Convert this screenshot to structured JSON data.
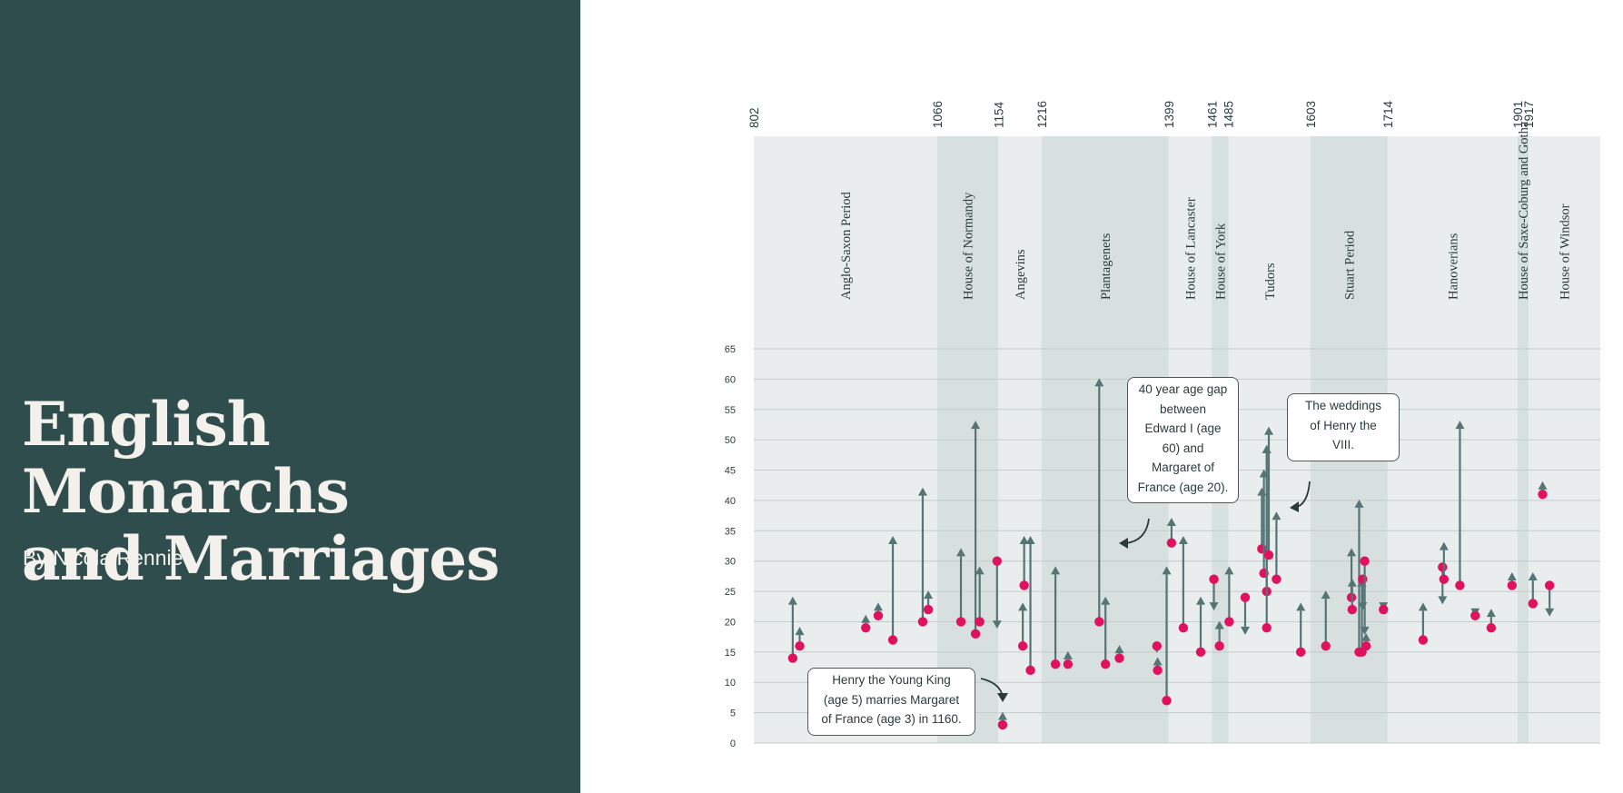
{
  "title_lines": [
    "English Monarchs",
    "and Marriages"
  ],
  "byline": "By Nicola Rennie",
  "colors": {
    "sidebar": "#2f4d4d",
    "title_text": "#f4f1ec",
    "band_light": "#e9eded",
    "band_dark": "#d7dfdf",
    "gridline": "#c4cccc",
    "king": "#557575",
    "consort": "#e0115f"
  },
  "annotations": [
    {
      "name": "henry-young-king-annotation",
      "lines": [
        "Henry the Young King",
        "(age 5) marries Margaret",
        "of France (age 3) in 1160."
      ]
    },
    {
      "name": "edward-age-gap-annotation",
      "lines": [
        "40 year age gap",
        "between",
        "Edward I (age",
        "60) and",
        "Margaret of",
        "France (age 20)."
      ]
    },
    {
      "name": "henry-viii-annotation",
      "lines": [
        "The weddings",
        "of Henry the",
        "VIII."
      ]
    }
  ],
  "chart_data": {
    "type": "scatter",
    "title": "English Monarchs and Marriages",
    "xlabel": "",
    "ylabel": "",
    "ylim": [
      0,
      65
    ],
    "yticks": [
      0,
      5,
      10,
      15,
      20,
      25,
      30,
      35,
      40,
      45,
      50,
      55,
      60,
      65
    ],
    "grid": true,
    "period_boundaries": [
      802,
      1066,
      1154,
      1216,
      1399,
      1461,
      1485,
      1603,
      1714,
      1901,
      1917
    ],
    "periods": [
      {
        "name": "Anglo-Saxon Period",
        "start": 802,
        "end": 1066,
        "shade": "light"
      },
      {
        "name": "House of Normandy",
        "start": 1066,
        "end": 1154,
        "shade": "dark"
      },
      {
        "name": "Angevins",
        "start": 1154,
        "end": 1216,
        "shade": "light"
      },
      {
        "name": "Plantagenets",
        "start": 1216,
        "end": 1399,
        "shade": "dark"
      },
      {
        "name": "House of Lancaster",
        "start": 1399,
        "end": 1461,
        "shade": "light"
      },
      {
        "name": "House of York",
        "start": 1461,
        "end": 1485,
        "shade": "dark"
      },
      {
        "name": "Tudors",
        "start": 1485,
        "end": 1603,
        "shade": "light"
      },
      {
        "name": "Stuart Period",
        "start": 1603,
        "end": 1714,
        "shade": "dark"
      },
      {
        "name": "Hanoverians",
        "start": 1714,
        "end": 1901,
        "shade": "light"
      },
      {
        "name": "House of Saxe-Coburg and Gotha",
        "start": 1901,
        "end": 1917,
        "shade": "dark"
      },
      {
        "name": "House of Windsor",
        "start": 1917,
        "end": 2020,
        "shade": "light"
      }
    ],
    "xlim": [
      802,
      2020
    ],
    "marriages": [
      {
        "year": 858,
        "king_age": 24,
        "consort_age": 14
      },
      {
        "year": 868,
        "king_age": 19,
        "consort_age": 16
      },
      {
        "year": 963,
        "king_age": 21,
        "consort_age": 19
      },
      {
        "year": 981,
        "king_age": 23,
        "consort_age": 21
      },
      {
        "year": 1002,
        "king_age": 34,
        "consort_age": 17
      },
      {
        "year": 1045,
        "king_age": 42,
        "consort_age": 20
      },
      {
        "year": 1053,
        "king_age": 25,
        "consort_age": 22
      },
      {
        "year": 1100,
        "king_age": 32,
        "consort_age": 20
      },
      {
        "year": 1121,
        "king_age": 53,
        "consort_age": 18
      },
      {
        "year": 1127,
        "king_age": 29,
        "consort_age": 20
      },
      {
        "year": 1152,
        "king_age": 19,
        "consort_age": 30
      },
      {
        "year": 1160,
        "king_age": 5,
        "consort_age": 3
      },
      {
        "year": 1191,
        "king_age": 34,
        "consort_age": 26
      },
      {
        "year": 1189,
        "king_age": 23,
        "consort_age": 16
      },
      {
        "year": 1200,
        "king_age": 34,
        "consort_age": 12
      },
      {
        "year": 1236,
        "king_age": 29,
        "consort_age": 13
      },
      {
        "year": 1254,
        "king_age": 15,
        "consort_age": 13
      },
      {
        "year": 1299,
        "king_age": 60,
        "consort_age": 20
      },
      {
        "year": 1308,
        "king_age": 24,
        "consort_age": 13
      },
      {
        "year": 1328,
        "king_age": 16,
        "consort_age": 14
      },
      {
        "year": 1382,
        "king_age": 15,
        "consort_age": 16
      },
      {
        "year": 1383,
        "king_age": 14,
        "consort_age": 12
      },
      {
        "year": 1396,
        "king_age": 29,
        "consort_age": 7
      },
      {
        "year": 1403,
        "king_age": 37,
        "consort_age": 33
      },
      {
        "year": 1420,
        "king_age": 34,
        "consort_age": 19
      },
      {
        "year": 1445,
        "king_age": 24,
        "consort_age": 15
      },
      {
        "year": 1464,
        "king_age": 22,
        "consort_age": 27
      },
      {
        "year": 1472,
        "king_age": 20,
        "consort_age": 16
      },
      {
        "year": 1486,
        "king_age": 29,
        "consort_age": 20
      },
      {
        "year": 1509,
        "king_age": 18,
        "consort_age": 24
      },
      {
        "year": 1533,
        "king_age": 42,
        "consort_age": 32
      },
      {
        "year": 1536,
        "king_age": 45,
        "consort_age": 28
      },
      {
        "year": 1540,
        "king_age": 49,
        "consort_age": 25
      },
      {
        "year": 1540,
        "king_age": 49,
        "consort_age": 19
      },
      {
        "year": 1543,
        "king_age": 52,
        "consort_age": 31
      },
      {
        "year": 1554,
        "king_age": 38,
        "consort_age": 27
      },
      {
        "year": 1589,
        "king_age": 23,
        "consort_age": 15
      },
      {
        "year": 1625,
        "king_age": 25,
        "consort_age": 16
      },
      {
        "year": 1662,
        "king_age": 32,
        "consort_age": 24
      },
      {
        "year": 1663,
        "king_age": 27,
        "consort_age": 22
      },
      {
        "year": 1673,
        "king_age": 40,
        "consort_age": 15
      },
      {
        "year": 1677,
        "king_age": 27,
        "consort_age": 15
      },
      {
        "year": 1678,
        "king_age": 22,
        "consort_age": 27
      },
      {
        "year": 1681,
        "king_age": 18,
        "consort_age": 30
      },
      {
        "year": 1683,
        "king_age": 18,
        "consort_age": 16
      },
      {
        "year": 1708,
        "king_age": 22,
        "consort_age": 22
      },
      {
        "year": 1765,
        "king_age": 23,
        "consort_age": 17
      },
      {
        "year": 1793,
        "king_age": 23,
        "consort_age": 29
      },
      {
        "year": 1795,
        "king_age": 33,
        "consort_age": 27
      },
      {
        "year": 1818,
        "king_age": 53,
        "consort_age": 26
      },
      {
        "year": 1840,
        "king_age": 21,
        "consort_age": 21
      },
      {
        "year": 1863,
        "king_age": 22,
        "consort_age": 19
      },
      {
        "year": 1893,
        "king_age": 28,
        "consort_age": 26
      },
      {
        "year": 1923,
        "king_age": 28,
        "consort_age": 23
      },
      {
        "year": 1937,
        "king_age": 43,
        "consort_age": 41
      },
      {
        "year": 1947,
        "king_age": 21,
        "consort_age": 26
      }
    ]
  }
}
